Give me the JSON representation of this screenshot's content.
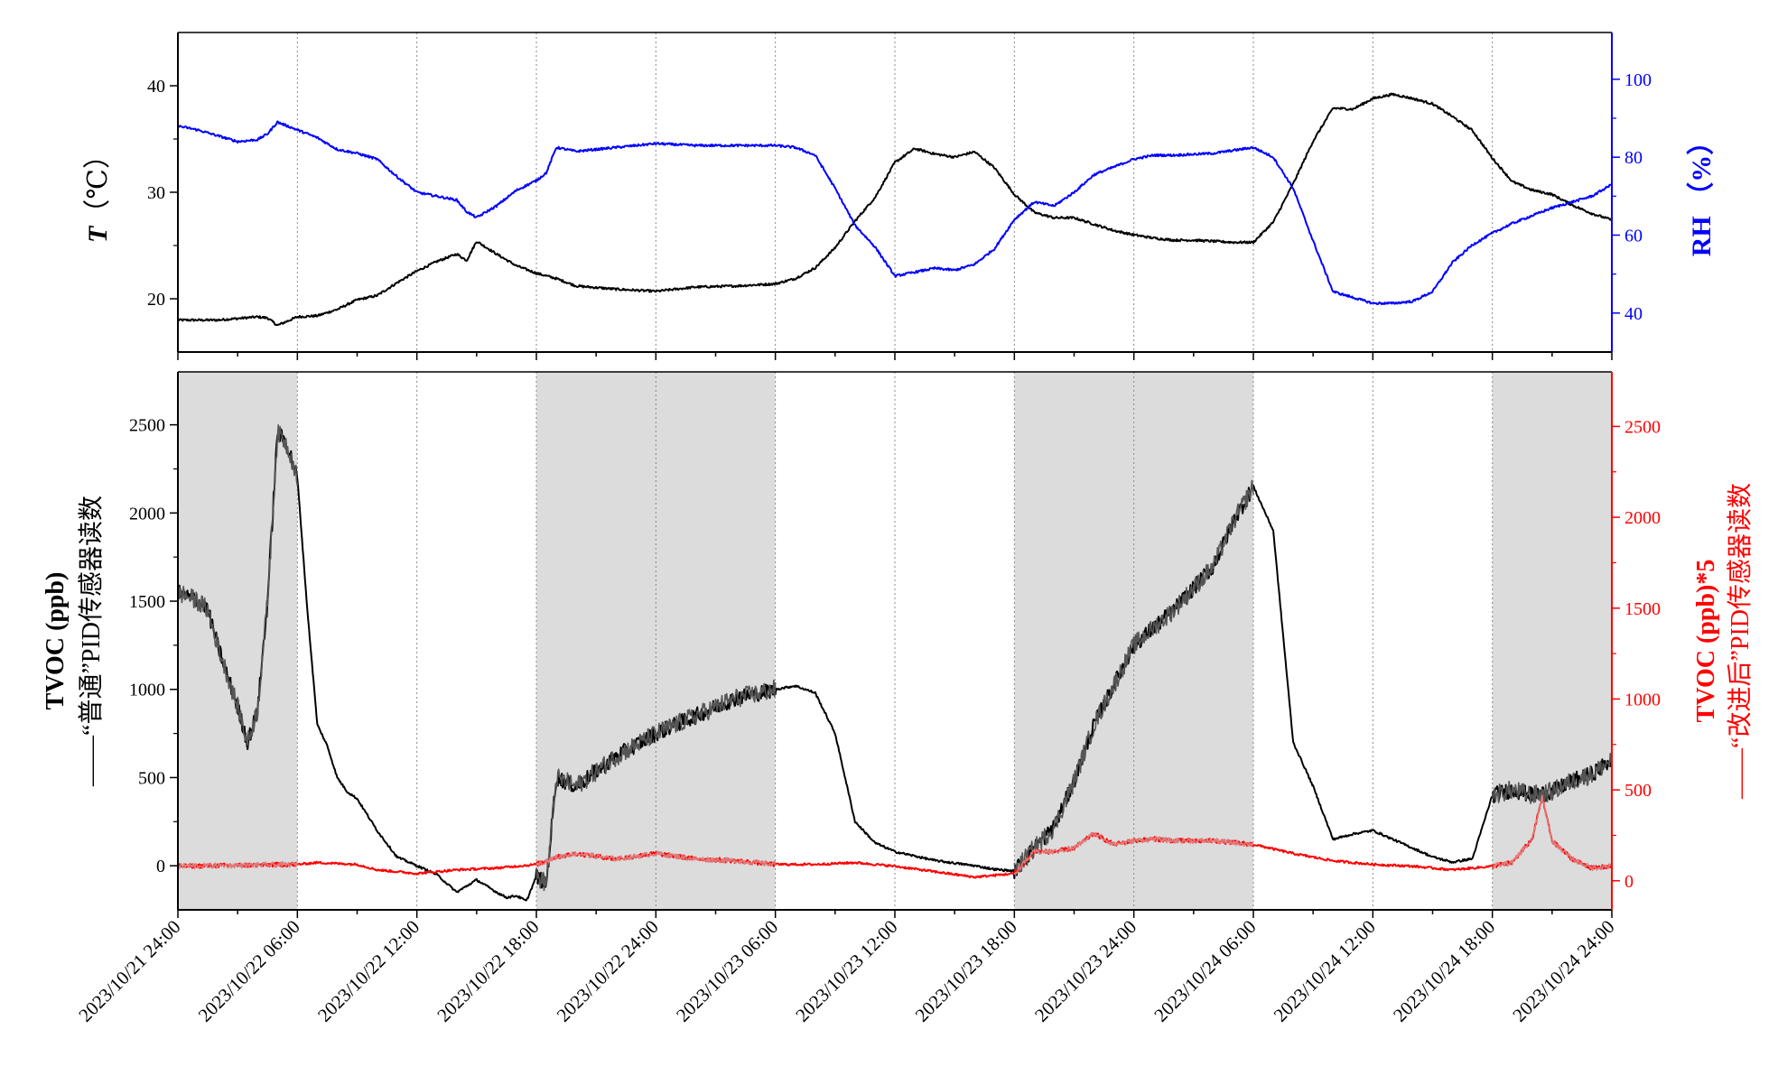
{
  "chart_data": [
    {
      "type": "line",
      "panel": "top",
      "x_tick_labels": [
        "2023/10/21 24:00",
        "2023/10/22 06:00",
        "2023/10/22 12:00",
        "2023/10/22 18:00",
        "2023/10/22 24:00",
        "2023/10/23 06:00",
        "2023/10/23 12:00",
        "2023/10/23 18:00",
        "2023/10/23 24:00",
        "2023/10/24 06:00",
        "2023/10/24 12:00",
        "2023/10/24 18:00",
        "2023/10/24 24:00"
      ],
      "x_unit": "hours since 2023/10/21 24:00",
      "xlim": [
        0,
        72
      ],
      "y_left": {
        "label_symbol": "T",
        "label_unit": "（℃）",
        "ticks": [
          "20",
          "30",
          "40"
        ],
        "ylim": [
          15,
          45
        ],
        "color": "#000000"
      },
      "y_right": {
        "label": "RH （%）",
        "ticks": [
          "40",
          "60",
          "80",
          "100"
        ],
        "ylim": [
          30,
          112
        ],
        "color": "#0000ff"
      },
      "grid_x": "dotted vertical lines at each 6h tick",
      "series": [
        {
          "axis": "left",
          "color": "#000000",
          "x": [
            0,
            2,
            4,
            4.5,
            5,
            5.5,
            6,
            7,
            8,
            9,
            10,
            11,
            12,
            13,
            14,
            14.5,
            15,
            16,
            17,
            18,
            19,
            20,
            22,
            24,
            26,
            28,
            30,
            31,
            32,
            33,
            34,
            35,
            36,
            37,
            38,
            39,
            40,
            41,
            42,
            43,
            44,
            45,
            46,
            47,
            48,
            49,
            50,
            51,
            52,
            53,
            54,
            55,
            56,
            57,
            58,
            59,
            60,
            61,
            62,
            63,
            64,
            65,
            66,
            67,
            68,
            69,
            70,
            71,
            72
          ],
          "y": [
            18,
            18,
            18.3,
            18.2,
            17.5,
            17.9,
            18.3,
            18.4,
            19,
            19.9,
            20.3,
            21.5,
            22.6,
            23.5,
            24.2,
            23.6,
            25.4,
            24.2,
            23.1,
            22.4,
            21.9,
            21.2,
            20.9,
            20.7,
            21.1,
            21.2,
            21.4,
            21.9,
            22.9,
            24.8,
            27.3,
            29.5,
            32.8,
            34.1,
            33.6,
            33.3,
            33.8,
            32.3,
            29.8,
            28.1,
            27.6,
            27.6,
            27,
            26.4,
            26,
            25.7,
            25.5,
            25.5,
            25.4,
            25.3,
            25.3,
            27.2,
            30.8,
            34.8,
            37.9,
            37.8,
            38.8,
            39.2,
            38.8,
            38.3,
            37.1,
            35.8,
            33.2,
            31,
            30.2,
            29.8,
            28.8,
            28,
            27.4
          ]
        },
        {
          "axis": "right",
          "color": "#0000ff",
          "x": [
            0,
            1,
            2,
            3,
            4,
            4.5,
            5,
            6,
            7,
            8,
            9,
            10,
            11,
            12,
            13,
            14,
            14.5,
            15,
            16,
            17,
            18,
            18.5,
            19,
            20,
            22,
            24,
            26,
            28,
            30,
            31,
            32,
            33,
            34,
            35,
            36,
            37,
            38,
            39,
            40,
            41,
            42,
            43,
            44,
            45,
            46,
            47,
            48,
            49,
            50,
            52,
            54,
            55,
            56,
            57,
            58,
            59,
            60,
            61,
            62,
            63,
            64,
            65,
            66,
            67,
            68,
            69,
            70,
            71,
            72
          ],
          "y": [
            88,
            87,
            85.5,
            84,
            84.5,
            86,
            89,
            87,
            85,
            82,
            81,
            79.5,
            75,
            71,
            70,
            69,
            66,
            64.5,
            67.5,
            71.5,
            74,
            76,
            82.5,
            81.5,
            82.5,
            83.5,
            83,
            83,
            83,
            82.5,
            80.5,
            72,
            62.5,
            57,
            49.5,
            50.5,
            51.5,
            51,
            52.5,
            56.5,
            64,
            68.5,
            67.5,
            71,
            75.5,
            77.5,
            79.5,
            80.5,
            80.5,
            81,
            82.5,
            80,
            72,
            58.5,
            45.5,
            44,
            42.5,
            42.5,
            43,
            45.5,
            53,
            57.5,
            60.5,
            63,
            65,
            67,
            68.5,
            70,
            73
          ]
        }
      ]
    },
    {
      "type": "line",
      "panel": "bottom",
      "x_tick_labels": [
        "2023/10/21 24:00",
        "2023/10/22 06:00",
        "2023/10/22 12:00",
        "2023/10/22 18:00",
        "2023/10/22 24:00",
        "2023/10/23 06:00",
        "2023/10/23 12:00",
        "2023/10/23 18:00",
        "2023/10/23 24:00",
        "2023/10/24 06:00",
        "2023/10/24 12:00",
        "2023/10/24 18:00",
        "2023/10/24 24:00"
      ],
      "x_unit": "hours since 2023/10/21 24:00",
      "xlim": [
        0,
        72
      ],
      "y_left": {
        "label_line1": "TVOC (ppb)",
        "label_line2": "——“普通”PID传感器读数",
        "ticks": [
          "0",
          "500",
          "1000",
          "1500",
          "2000",
          "2500"
        ],
        "ylim": [
          -250,
          2800
        ],
        "color": "#000000"
      },
      "y_right": {
        "label_line1": "TVOC (ppb)*5",
        "label_line2": "——“改进后”PID传感器读数",
        "ticks": [
          "0",
          "500",
          "1000",
          "1500",
          "2000",
          "2500"
        ],
        "ylim": [
          -160,
          2800
        ],
        "color": "#ff0000"
      },
      "shaded_intervals_hours": [
        [
          0,
          6
        ],
        [
          18,
          30
        ],
        [
          42,
          54
        ],
        [
          66,
          72
        ]
      ],
      "shade_color": "#dcdcdc",
      "grid_x": "dotted vertical lines at each 6h tick",
      "series": [
        {
          "axis": "left",
          "color": "#000000",
          "noisy_color": "#555555",
          "x": [
            0,
            1,
            1.5,
            2,
            3,
            3.5,
            4,
            4.5,
            5,
            5.3,
            5.6,
            6,
            6.5,
            7,
            7.5,
            8,
            8.5,
            9,
            10,
            11,
            12,
            13,
            14,
            15,
            16,
            16.5,
            17,
            17.5,
            18,
            18.5,
            19,
            20,
            22,
            24,
            26,
            28,
            30,
            31,
            32,
            33,
            34,
            35,
            36,
            38,
            40,
            41,
            42,
            43,
            44,
            45,
            46,
            48,
            50,
            52,
            53,
            53.5,
            54,
            55,
            55.5,
            56,
            57,
            58,
            59,
            60,
            61,
            62,
            63,
            64,
            65,
            66,
            67,
            68,
            69,
            70,
            71,
            72
          ],
          "y": [
            1550,
            1500,
            1450,
            1250,
            900,
            700,
            880,
            1500,
            2450,
            2420,
            2350,
            2200,
            1450,
            800,
            680,
            500,
            420,
            380,
            200,
            50,
            0,
            -50,
            -150,
            -80,
            -150,
            -180,
            -170,
            -200,
            -60,
            -100,
            500,
            450,
            620,
            750,
            850,
            950,
            1000,
            1020,
            980,
            750,
            250,
            130,
            80,
            30,
            0,
            -20,
            -30,
            100,
            220,
            480,
            800,
            1250,
            1450,
            1700,
            1950,
            2050,
            2150,
            1900,
            1300,
            700,
            450,
            150,
            180,
            200,
            150,
            100,
            50,
            20,
            40,
            400,
            430,
            400,
            420,
            480,
            520,
            600
          ]
        },
        {
          "axis": "right",
          "color": "#ff0000",
          "noisy_color": "#e07a7a",
          "x": [
            0,
            6,
            7,
            9,
            10,
            12,
            14,
            16,
            18,
            19,
            20,
            22,
            24,
            26,
            28,
            30,
            32,
            34,
            36,
            38,
            40,
            42,
            43,
            44,
            45,
            46,
            47,
            48,
            49,
            50,
            52,
            54,
            56,
            58,
            60,
            62,
            64,
            66,
            67,
            68,
            68.5,
            69,
            70,
            71,
            72
          ],
          "y": [
            80,
            90,
            100,
            90,
            60,
            40,
            60,
            70,
            90,
            130,
            150,
            120,
            150,
            120,
            110,
            90,
            90,
            100,
            80,
            50,
            20,
            40,
            160,
            160,
            180,
            260,
            200,
            220,
            230,
            220,
            220,
            200,
            150,
            110,
            90,
            80,
            60,
            80,
            100,
            230,
            460,
            220,
            120,
            70,
            80
          ]
        }
      ]
    }
  ]
}
